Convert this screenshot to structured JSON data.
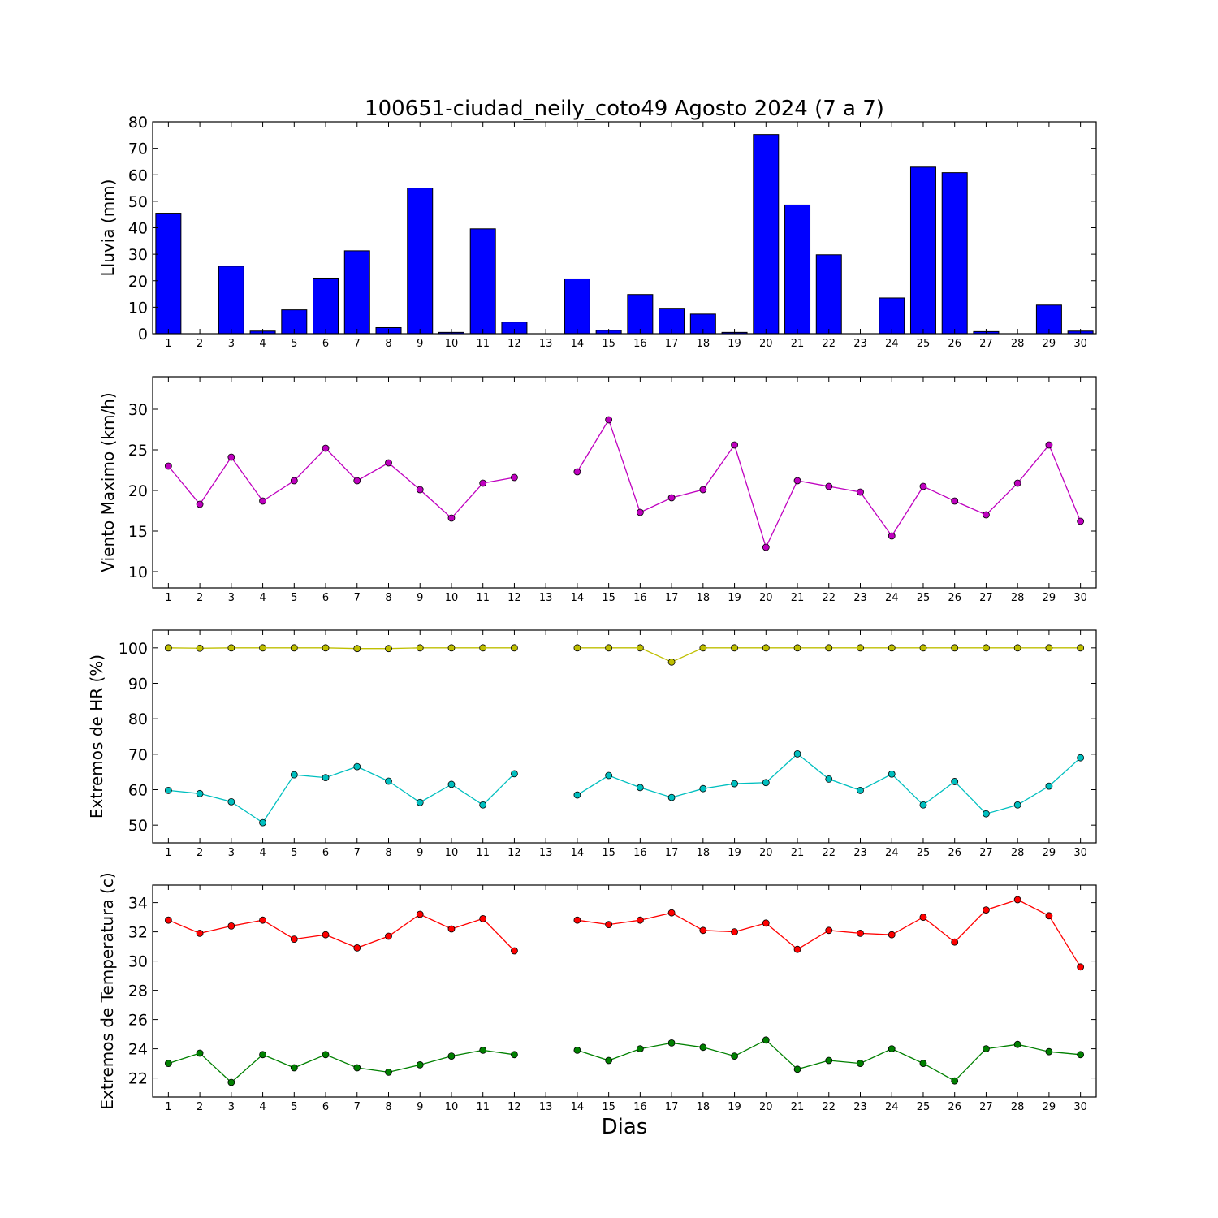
{
  "chart_data": [
    {
      "type": "bar",
      "title": "100651-ciudad_neily_coto49 Agosto 2024  (7 a 7)",
      "xlabel": "",
      "ylabel": "Lluvia (mm)",
      "xlim": [
        0.5,
        30.5
      ],
      "ylim": [
        0,
        80
      ],
      "yticks": [
        0,
        10,
        20,
        30,
        40,
        50,
        60,
        70,
        80
      ],
      "categories": [
        1,
        2,
        3,
        4,
        5,
        6,
        7,
        8,
        9,
        10,
        11,
        12,
        13,
        14,
        15,
        16,
        17,
        18,
        19,
        20,
        21,
        22,
        23,
        24,
        25,
        26,
        27,
        28,
        29,
        30
      ],
      "series": [
        {
          "color": "#0000ff",
          "values": [
            45.5,
            0,
            25.5,
            1,
            9,
            21,
            31.3,
            2.3,
            55,
            0.5,
            39.6,
            4.4,
            0,
            20.7,
            1.3,
            14.8,
            9.6,
            7.4,
            0.5,
            75.2,
            48.6,
            29.8,
            0,
            13.5,
            62.9,
            60.8,
            0.8,
            0,
            10.8,
            1
          ]
        }
      ]
    },
    {
      "type": "line",
      "title": "",
      "xlabel": "",
      "ylabel": "Viento Maximo (km/h)",
      "xlim": [
        0.5,
        30.5
      ],
      "ylim": [
        8,
        34
      ],
      "yticks": [
        10,
        15,
        20,
        25,
        30
      ],
      "categories": [
        1,
        2,
        3,
        4,
        5,
        6,
        7,
        8,
        9,
        10,
        11,
        12,
        13,
        14,
        15,
        16,
        17,
        18,
        19,
        20,
        21,
        22,
        23,
        24,
        25,
        26,
        27,
        28,
        29,
        30
      ],
      "series": [
        {
          "color": "#bf00bf",
          "values": [
            23,
            18.3,
            24.1,
            18.7,
            21.2,
            25.2,
            21.2,
            23.4,
            20.1,
            16.6,
            20.9,
            21.6,
            null,
            22.3,
            28.7,
            17.3,
            19.1,
            20.1,
            25.6,
            13,
            21.2,
            20.5,
            19.8,
            14.4,
            20.5,
            18.7,
            17,
            20.9,
            25.6,
            16.2
          ]
        }
      ]
    },
    {
      "type": "line",
      "title": "",
      "xlabel": "",
      "ylabel": "Extremos de HR (%)",
      "xlim": [
        0.5,
        30.5
      ],
      "ylim": [
        45,
        105
      ],
      "yticks": [
        50,
        60,
        70,
        80,
        90,
        100
      ],
      "categories": [
        1,
        2,
        3,
        4,
        5,
        6,
        7,
        8,
        9,
        10,
        11,
        12,
        13,
        14,
        15,
        16,
        17,
        18,
        19,
        20,
        21,
        22,
        23,
        24,
        25,
        26,
        27,
        28,
        29,
        30
      ],
      "series": [
        {
          "color": "#bfbf00",
          "values": [
            100,
            99.9,
            100,
            100,
            100,
            100,
            99.8,
            99.8,
            100,
            100,
            100,
            100,
            null,
            100,
            100,
            100,
            96,
            100,
            100,
            100,
            100,
            100,
            100,
            100,
            100,
            100,
            100,
            100,
            100,
            100
          ]
        },
        {
          "color": "#00bfbf",
          "values": [
            59.8,
            58.9,
            56.6,
            50.7,
            64.2,
            63.4,
            66.5,
            62.4,
            56.4,
            61.5,
            55.7,
            64.5,
            null,
            58.5,
            64,
            60.6,
            57.8,
            60.3,
            61.7,
            62,
            70.1,
            63,
            59.8,
            64.4,
            55.7,
            62.3,
            53.2,
            55.7,
            61,
            69
          ]
        }
      ]
    },
    {
      "type": "line",
      "title": "",
      "xlabel": "Dias",
      "ylabel": "Extremos de Temperatura (c)",
      "xlim": [
        0.5,
        30.5
      ],
      "ylim": [
        20.7,
        35.2
      ],
      "yticks": [
        22,
        24,
        26,
        28,
        30,
        32,
        34
      ],
      "categories": [
        1,
        2,
        3,
        4,
        5,
        6,
        7,
        8,
        9,
        10,
        11,
        12,
        13,
        14,
        15,
        16,
        17,
        18,
        19,
        20,
        21,
        22,
        23,
        24,
        25,
        26,
        27,
        28,
        29,
        30
      ],
      "series": [
        {
          "color": "#ff0000",
          "values": [
            32.8,
            31.9,
            32.4,
            32.8,
            31.5,
            31.8,
            30.9,
            31.7,
            33.2,
            32.2,
            32.9,
            30.7,
            null,
            32.8,
            32.5,
            32.8,
            33.3,
            32.1,
            32,
            32.6,
            30.8,
            32.1,
            31.9,
            31.8,
            33,
            31.3,
            33.5,
            34.2,
            33.1,
            29.6
          ]
        },
        {
          "color": "#008000",
          "values": [
            23,
            23.7,
            21.7,
            23.6,
            22.7,
            23.6,
            22.7,
            22.4,
            22.9,
            23.5,
            23.9,
            23.6,
            null,
            23.9,
            23.2,
            24,
            24.4,
            24.1,
            23.5,
            24.6,
            22.6,
            23.2,
            23,
            24,
            23,
            21.8,
            24,
            24.3,
            23.8,
            23.6
          ]
        }
      ]
    }
  ]
}
